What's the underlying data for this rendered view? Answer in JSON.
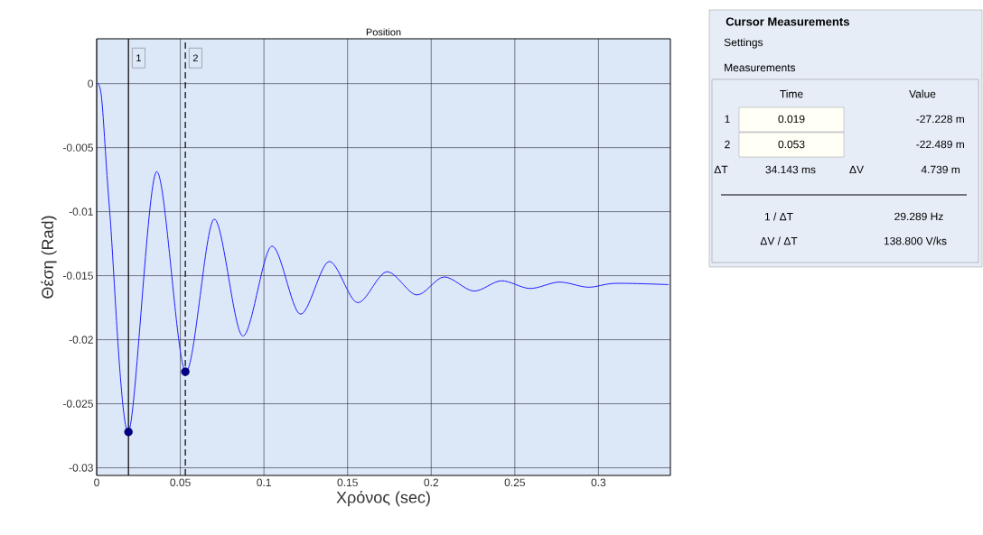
{
  "chart_data": {
    "type": "line",
    "title": "Position",
    "xlabel": "Χρόνος (sec)",
    "ylabel": "Θέση (Rad)",
    "xlim": [
      0,
      0.343
    ],
    "ylim": [
      -0.0306,
      0.0035
    ],
    "xticks": [
      0,
      0.05,
      0.1,
      0.15,
      0.2,
      0.25,
      0.3
    ],
    "yticks": [
      0,
      -0.005,
      -0.01,
      -0.015,
      -0.02,
      -0.025,
      -0.03
    ],
    "grid": true,
    "series": [
      {
        "color": "#1f1fff",
        "x": [
          0,
          0.003,
          0.0078,
          0.019,
          0.0356,
          0.053,
          0.07,
          0.0871,
          0.1045,
          0.1216,
          0.1388,
          0.1558,
          0.1733,
          0.1912,
          0.2076,
          0.2253,
          0.2418,
          0.259,
          0.2765,
          0.2938,
          0.3101,
          0.342
        ],
        "values": [
          0,
          -0.0012,
          -0.01,
          -0.0272,
          -0.0069,
          -0.0225,
          -0.0106,
          -0.0197,
          -0.0127,
          -0.018,
          -0.0139,
          -0.0171,
          -0.0147,
          -0.0165,
          -0.0151,
          -0.0162,
          -0.0154,
          -0.016,
          -0.0155,
          -0.0159,
          -0.0156,
          -0.0157
        ]
      },
      {
        "type": "scatter",
        "color": "#000080",
        "x": [
          0.019,
          0.053
        ],
        "values": [
          -0.0272,
          -0.0225
        ]
      }
    ],
    "ref_lines": [
      {
        "axis": "x",
        "value": 0.019,
        "color": "#000000",
        "line_style": "solid"
      },
      {
        "axis": "x",
        "value": 0.053,
        "color": "#000000",
        "line_style": "dashed"
      }
    ],
    "annotations": [
      "Cursor Measurements",
      "Settings",
      "Measurements",
      "Time",
      "Value",
      "1",
      "0.019",
      "-27.228 m",
      "2",
      "0.053",
      "-22.489 m",
      "ΔT",
      "34.143 ms",
      "ΔV",
      "4.739 m",
      "1 / ΔT",
      "29.289 Hz",
      "ΔV / ΔT",
      "138.800 V/ks",
      {
        "text": "1",
        "x": 0.019,
        "y": 0.002
      },
      {
        "text": "2",
        "x": 0.053,
        "y": 0.002
      }
    ]
  }
}
